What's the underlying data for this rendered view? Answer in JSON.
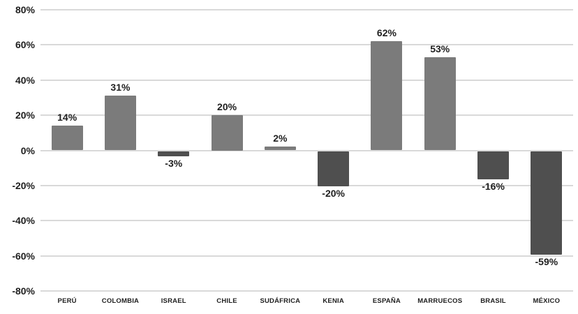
{
  "chart_data": {
    "type": "bar",
    "title": "",
    "xlabel": "",
    "ylabel": "",
    "categories": [
      "PERÚ",
      "COLOMBIA",
      "ISRAEL",
      "CHILE",
      "SUDÁFRICA",
      "KENIA",
      "ESPAÑA",
      "MARRUECOS",
      "BRASIL",
      "MÉXICO"
    ],
    "values": [
      14,
      31,
      -3,
      20,
      2,
      -20,
      62,
      53,
      -16,
      -59
    ],
    "value_labels": [
      "14%",
      "31%",
      "-3%",
      "20%",
      "2%",
      "-20%",
      "62%",
      "53%",
      "-16%",
      "-59%"
    ],
    "ylim": [
      -80,
      80
    ],
    "ytick_step": 20,
    "ytick_labels": [
      "80%",
      "60%",
      "40%",
      "20%",
      "0%",
      "-20%",
      "-40%",
      "-60%",
      "-80%"
    ],
    "grid": true,
    "legend_position": "none",
    "colors": {
      "positive_bar": "#7b7b7b",
      "negative_bar": "#4f4f4f",
      "gridline": "#d9d9d9",
      "text": "#1f1f1f",
      "background": "#ffffff"
    }
  }
}
